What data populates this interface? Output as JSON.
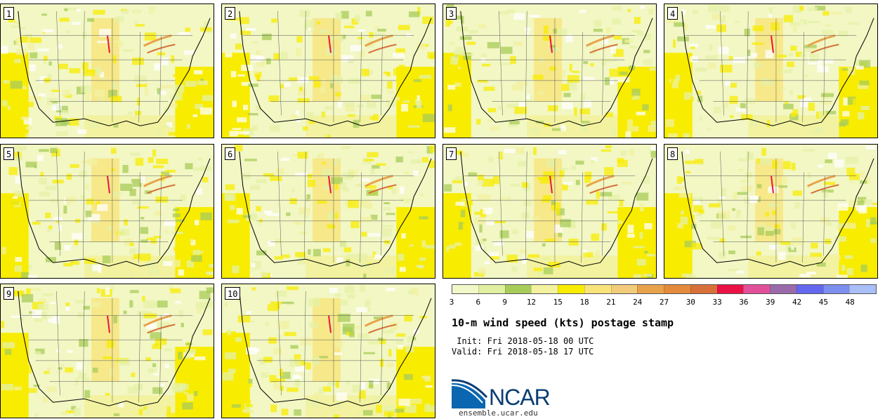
{
  "stamps": [
    {
      "label": "1"
    },
    {
      "label": "2"
    },
    {
      "label": "3"
    },
    {
      "label": "4"
    },
    {
      "label": "5"
    },
    {
      "label": "6"
    },
    {
      "label": "7"
    },
    {
      "label": "8"
    },
    {
      "label": "9"
    },
    {
      "label": "10"
    }
  ],
  "colorbar": {
    "ticks": [
      "3",
      "6",
      "9",
      "12",
      "15",
      "18",
      "21",
      "24",
      "27",
      "30",
      "33",
      "36",
      "39",
      "42",
      "45",
      "48"
    ],
    "colors": [
      "#f3f8c8",
      "#e0f0a0",
      "#a8cc5a",
      "#f2f2a0",
      "#f8ec00",
      "#f8e47a",
      "#f2cc7a",
      "#e8a24a",
      "#e48a3c",
      "#d8703a",
      "#ea1244",
      "#e2509a",
      "#9a6aaa",
      "#6468ee",
      "#7c8eee",
      "#aabff8"
    ]
  },
  "title": "10-m wind speed (kts) postage stamp",
  "init": " Init: Fri 2018-05-18 00 UTC",
  "valid": "Valid: Fri 2018-05-18 17 UTC",
  "logo": {
    "text": "NCAR",
    "site": "ensemble.ucar.edu"
  }
}
